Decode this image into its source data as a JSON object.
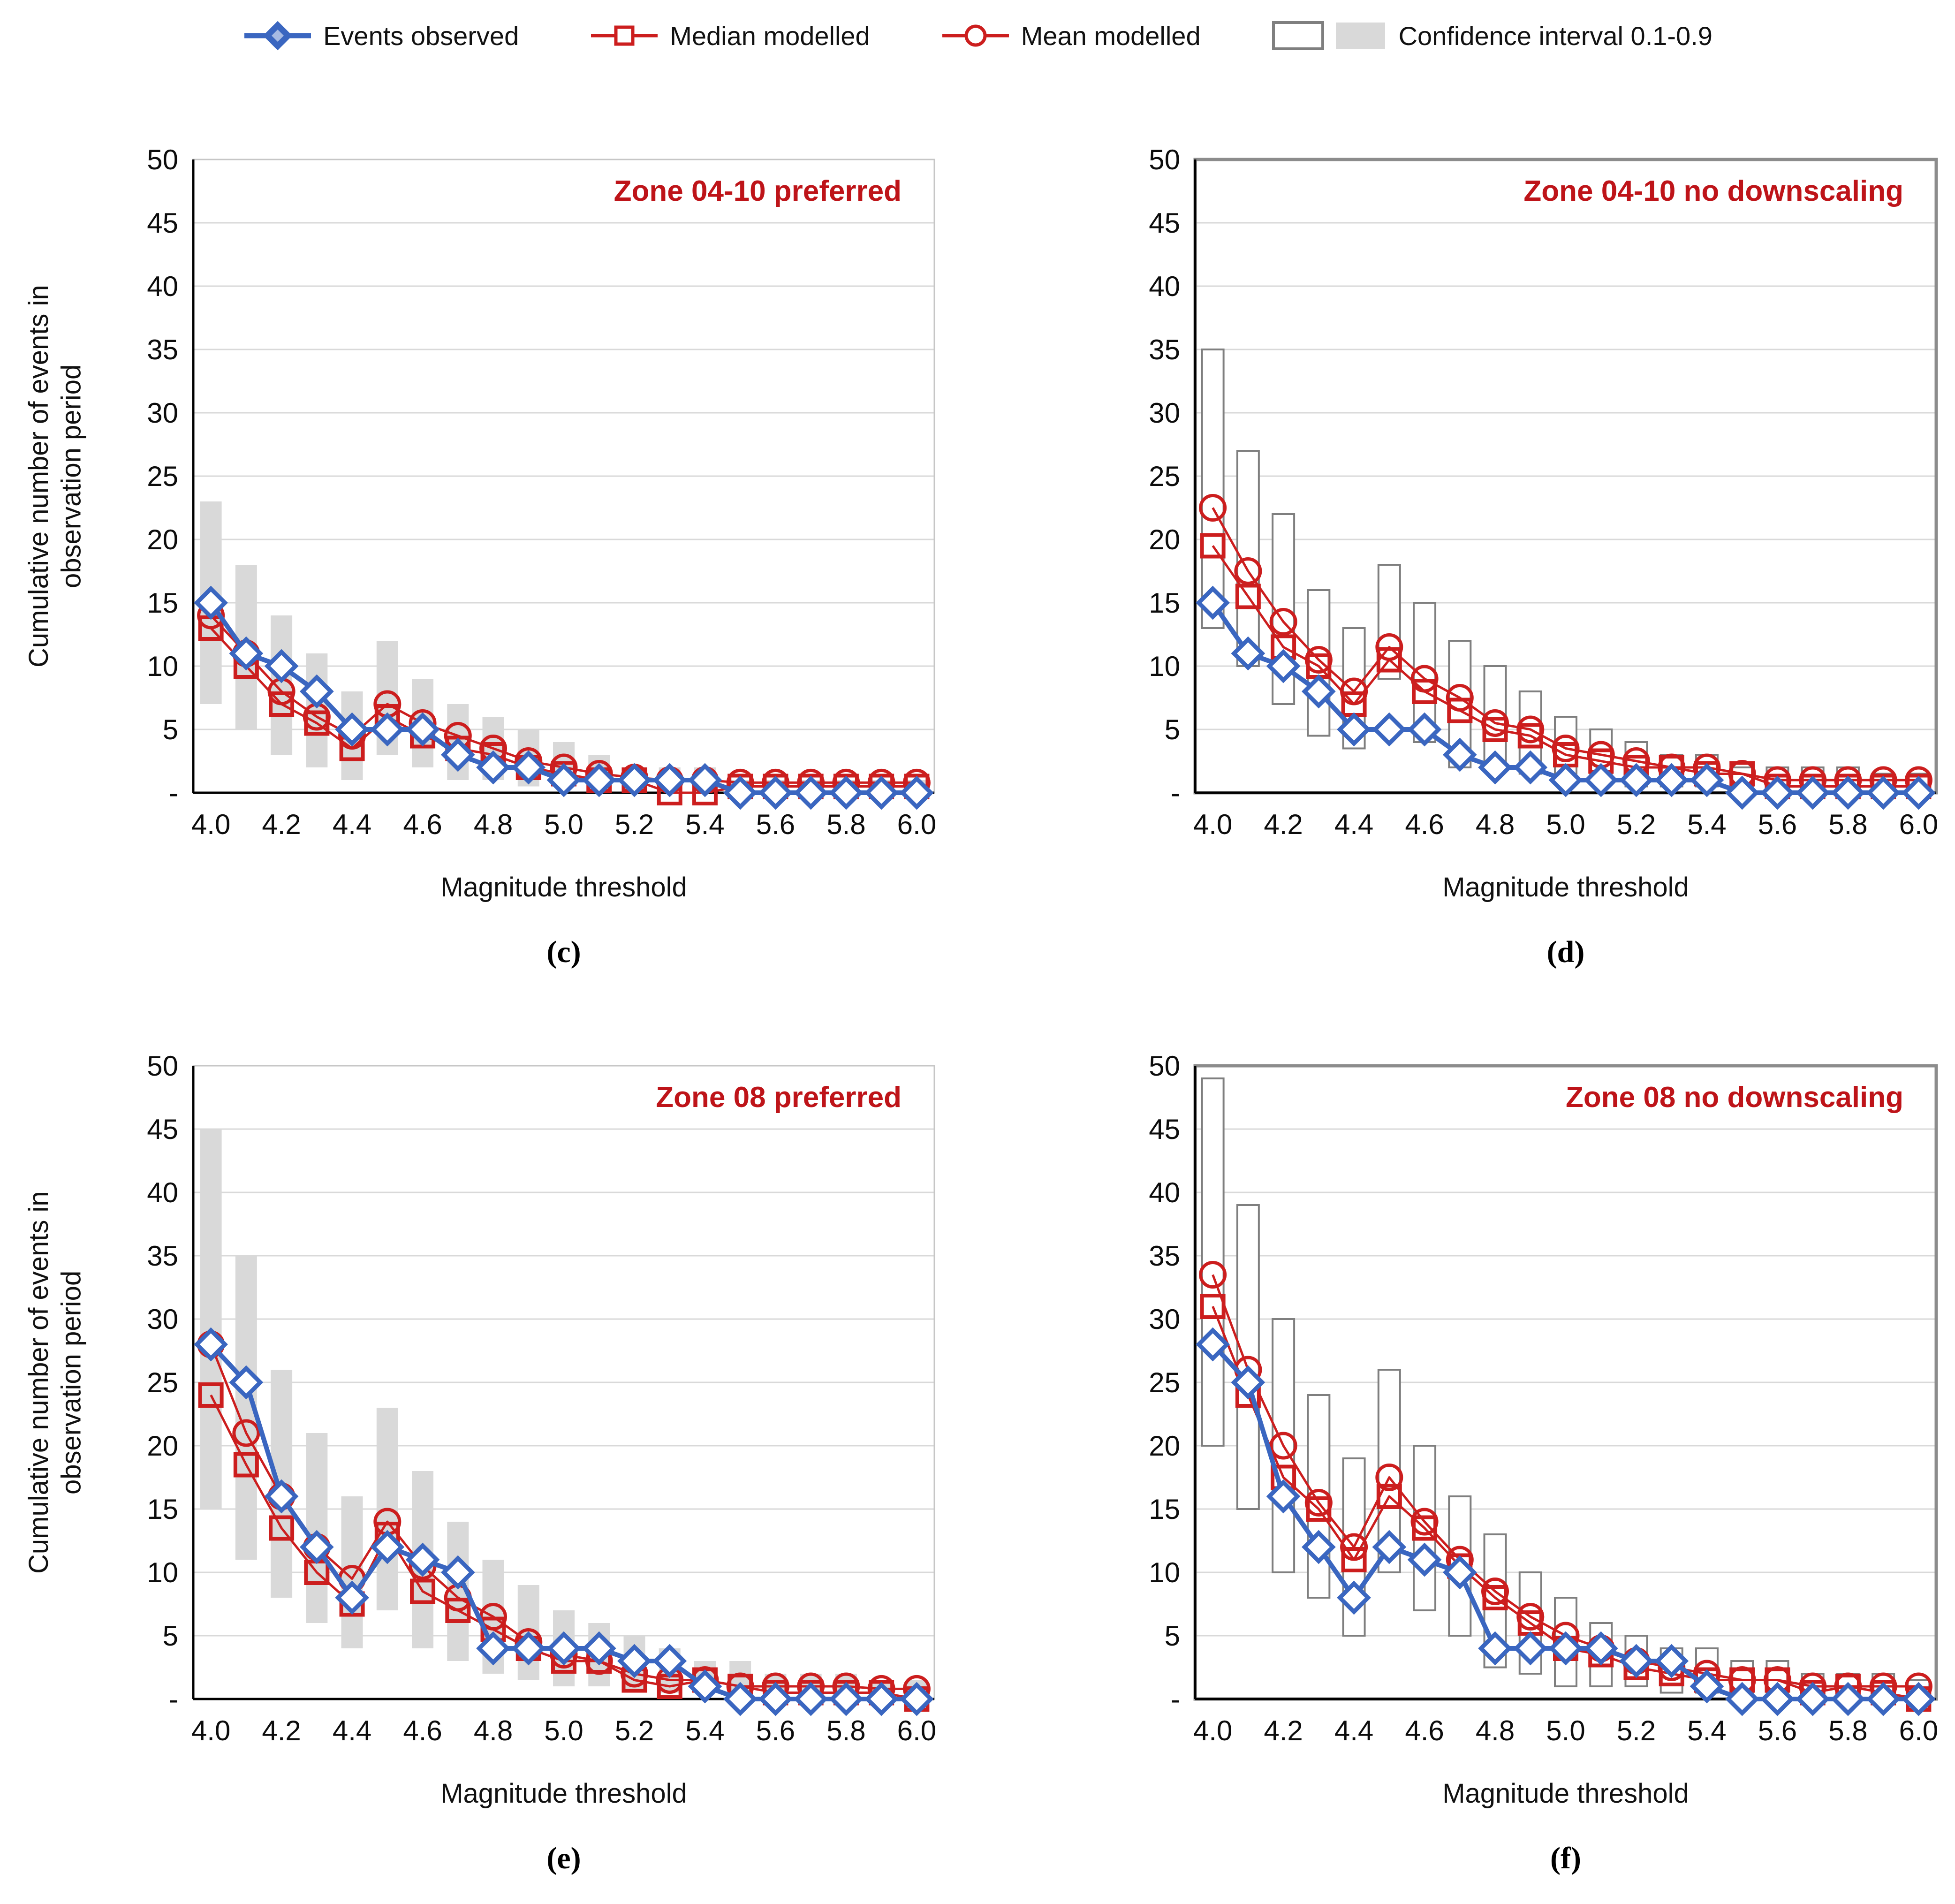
{
  "figure": {
    "kind": "2x2 panel line charts comparing observed vs modelled cumulative event counts"
  },
  "legend": {
    "items": [
      {
        "label": "Events observed",
        "marker": "blue-line-diamond"
      },
      {
        "label": "Median modelled",
        "marker": "red-line-square"
      },
      {
        "label": "Mean modelled",
        "marker": "red-line-circle"
      },
      {
        "label": "Confidence interval 0.1-0.9",
        "marker": "white-box-and-gray-box"
      }
    ]
  },
  "x_axis_label": "Magnitude threshold",
  "y_axis_label": "Cumulative number of events in\nobservation period",
  "y_tick_labels": [
    "50",
    "45",
    "40",
    "35",
    "30",
    "25",
    "20",
    "15",
    "10",
    "5",
    "-"
  ],
  "x_tick_labels": [
    "4.0",
    "4.2",
    "4.4",
    "4.6",
    "4.8",
    "5.0",
    "5.2",
    "5.4",
    "5.6",
    "5.8",
    "6.0"
  ],
  "colors": {
    "observed_blue": "#3a66c0",
    "modelled_red": "#cc1e1e",
    "title_red": "#be1419",
    "ci_fill": "#d9d9d9",
    "ci_outline": "#7f7f7f",
    "gridline": "#d9d9d9",
    "frame_light": "#c6c6c6",
    "frame_dark": "#8c8c8c",
    "axis_black": "#000000"
  },
  "chart_data": [
    {
      "type": "line",
      "panel_label": "(c)",
      "title": "Zone 04-10 preferred",
      "ci_style": "filled",
      "ylim": [
        0,
        50
      ],
      "grid_step": 5,
      "x": [
        4.0,
        4.1,
        4.2,
        4.3,
        4.4,
        4.5,
        4.6,
        4.7,
        4.8,
        4.9,
        5.0,
        5.1,
        5.2,
        5.3,
        5.4,
        5.5,
        5.6,
        5.7,
        5.8,
        5.9,
        6.0
      ],
      "series": [
        {
          "name": "Events observed",
          "values": [
            15,
            11,
            10,
            8,
            5,
            5,
            5,
            3,
            2,
            2,
            1,
            1,
            1,
            1,
            1,
            0,
            0,
            0,
            0,
            0,
            0
          ]
        },
        {
          "name": "Median modelled",
          "values": [
            13,
            10,
            7,
            5.5,
            3.5,
            6,
            4.5,
            3.5,
            3,
            2,
            1.5,
            1,
            1,
            0,
            0,
            0.5,
            0.5,
            0.5,
            0.5,
            0.5,
            0.5
          ]
        },
        {
          "name": "Mean modelled",
          "values": [
            14,
            11,
            8,
            6,
            4.5,
            7,
            5.5,
            4.5,
            3.5,
            2.5,
            2,
            1.5,
            1.2,
            1,
            1,
            0.8,
            0.8,
            0.8,
            0.8,
            0.8,
            0.8
          ]
        }
      ],
      "ci": {
        "low": [
          7,
          5,
          3,
          2,
          1,
          3,
          2,
          1,
          1,
          0.5,
          0.5,
          0,
          0,
          0,
          0,
          0,
          0,
          0,
          0,
          0,
          0
        ],
        "high": [
          23,
          18,
          14,
          11,
          8,
          12,
          9,
          7,
          6,
          5,
          4,
          3,
          2,
          2,
          2,
          1,
          1,
          1,
          1,
          1,
          1
        ]
      }
    },
    {
      "type": "line",
      "panel_label": "(d)",
      "title": "Zone 04-10 no downscaling",
      "ci_style": "outlined",
      "ylim": [
        0,
        50
      ],
      "grid_step": 5,
      "x": [
        4.0,
        4.1,
        4.2,
        4.3,
        4.4,
        4.5,
        4.6,
        4.7,
        4.8,
        4.9,
        5.0,
        5.1,
        5.2,
        5.3,
        5.4,
        5.5,
        5.6,
        5.7,
        5.8,
        5.9,
        6.0
      ],
      "series": [
        {
          "name": "Events observed",
          "values": [
            15,
            11,
            10,
            8,
            5,
            5,
            5,
            3,
            2,
            2,
            1,
            1,
            1,
            1,
            1,
            0,
            0,
            0,
            0,
            0,
            0
          ]
        },
        {
          "name": "Median modelled",
          "values": [
            19.5,
            15.5,
            11.5,
            10,
            7,
            10.5,
            8,
            6.5,
            5,
            4.5,
            3,
            2.5,
            2,
            2,
            1.5,
            1.5,
            0.5,
            0.5,
            0.5,
            0.5,
            0.5
          ]
        },
        {
          "name": "Mean modelled",
          "values": [
            22.5,
            17.5,
            13.5,
            10.5,
            8,
            11.5,
            9,
            7.5,
            5.5,
            5,
            3.5,
            3,
            2.5,
            2,
            2,
            1.5,
            1,
            1,
            1,
            1,
            1
          ]
        }
      ],
      "ci": {
        "low": [
          13,
          10,
          7,
          4.5,
          3.5,
          9,
          4,
          2,
          2,
          1.5,
          1,
          1,
          0.5,
          0.5,
          0.5,
          0,
          0,
          0,
          0,
          0,
          0
        ],
        "high": [
          35,
          27,
          22,
          16,
          13,
          18,
          15,
          12,
          10,
          8,
          6,
          5,
          4,
          3,
          3,
          2,
          2,
          2,
          2,
          1.5,
          1.5
        ]
      }
    },
    {
      "type": "line",
      "panel_label": "(e)",
      "title": "Zone 08 preferred",
      "ci_style": "filled",
      "ylim": [
        0,
        50
      ],
      "grid_step": 5,
      "x": [
        4.0,
        4.1,
        4.2,
        4.3,
        4.4,
        4.5,
        4.6,
        4.7,
        4.8,
        4.9,
        5.0,
        5.1,
        5.2,
        5.3,
        5.4,
        5.5,
        5.6,
        5.7,
        5.8,
        5.9,
        6.0
      ],
      "series": [
        {
          "name": "Events observed",
          "values": [
            28,
            25,
            16,
            12,
            8,
            12,
            11,
            10,
            4,
            4,
            4,
            4,
            3,
            3,
            1,
            0,
            0,
            0,
            0,
            0,
            0
          ]
        },
        {
          "name": "Median modelled",
          "values": [
            24,
            18.5,
            13.5,
            10,
            7.5,
            13,
            8.5,
            7,
            5.5,
            4,
            3,
            3,
            1.5,
            1,
            1.5,
            1,
            0.5,
            0.5,
            0.5,
            0.5,
            0
          ]
        },
        {
          "name": "Mean modelled",
          "values": [
            28,
            21,
            16,
            12,
            9.5,
            14,
            10.5,
            8,
            6.5,
            4.5,
            3.5,
            3,
            2,
            1.5,
            1.5,
            1,
            1,
            1,
            1,
            0.8,
            0.8
          ]
        }
      ],
      "ci": {
        "low": [
          15,
          11,
          8,
          6,
          4,
          7,
          4,
          3,
          2,
          1.5,
          1,
          1,
          0.5,
          0.5,
          0.5,
          0,
          0,
          0,
          0,
          0,
          0
        ],
        "high": [
          45,
          35,
          26,
          21,
          16,
          23,
          18,
          14,
          11,
          9,
          7,
          6,
          5,
          4,
          3,
          3,
          2,
          2,
          2,
          1.5,
          1.5
        ]
      }
    },
    {
      "type": "line",
      "panel_label": "(f)",
      "title": "Zone 08 no downscaling",
      "ci_style": "outlined",
      "ylim": [
        0,
        50
      ],
      "grid_step": 5,
      "x": [
        4.0,
        4.1,
        4.2,
        4.3,
        4.4,
        4.5,
        4.6,
        4.7,
        4.8,
        4.9,
        5.0,
        5.1,
        5.2,
        5.3,
        5.4,
        5.5,
        5.6,
        5.7,
        5.8,
        5.9,
        6.0
      ],
      "series": [
        {
          "name": "Events observed",
          "values": [
            28,
            25,
            16,
            12,
            8,
            12,
            11,
            10,
            4,
            4,
            4,
            4,
            3,
            3,
            1,
            0,
            0,
            0,
            0,
            0,
            0
          ]
        },
        {
          "name": "Median modelled",
          "values": [
            31,
            24,
            17.5,
            15,
            11,
            16,
            13.5,
            10.5,
            8,
            6,
            4,
            3.5,
            2.5,
            2,
            1.5,
            1.5,
            1.5,
            0.5,
            1,
            0.5,
            0
          ]
        },
        {
          "name": "Mean modelled",
          "values": [
            33.5,
            26,
            20,
            15.5,
            12,
            17.5,
            14,
            11,
            8.5,
            6.5,
            5,
            4,
            3,
            2.5,
            2,
            1.5,
            1.5,
            1,
            1,
            1,
            1
          ]
        }
      ],
      "ci": {
        "low": [
          20,
          15,
          10,
          8,
          5,
          10,
          7,
          5,
          2.5,
          2,
          1,
          1,
          1,
          0.5,
          0.5,
          0.5,
          0.5,
          0.5,
          0.5,
          0.5,
          0
        ],
        "high": [
          49,
          39,
          30,
          24,
          19,
          26,
          20,
          16,
          13,
          10,
          8,
          6,
          5,
          4,
          4,
          3,
          3,
          2,
          2,
          2,
          1.5
        ]
      }
    }
  ]
}
